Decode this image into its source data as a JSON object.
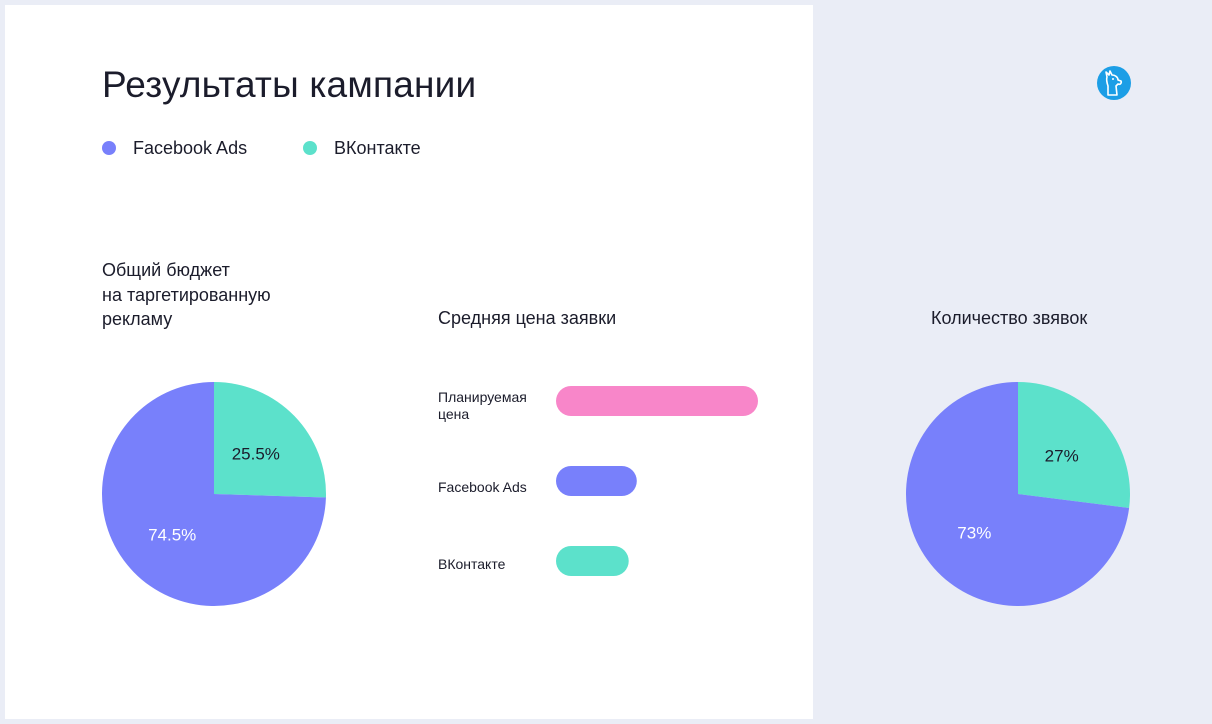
{
  "title": "Результаты кампании",
  "legend": [
    {
      "label": "Facebook Ads",
      "color": "#7880fb"
    },
    {
      "label": "ВКонтакте",
      "color": "#5ce1cb"
    }
  ],
  "logo": {
    "icon": "llama-icon",
    "color": "#1c9ee6"
  },
  "chart_data": [
    {
      "type": "pie",
      "title_lines": [
        "Общий бюджет",
        "на таргетированную",
        "рекламу"
      ],
      "slices": [
        {
          "name": "ВКонтакте",
          "value": 25.5,
          "label": "25.5%",
          "color": "#5ce1cb"
        },
        {
          "name": "Facebook Ads",
          "value": 74.5,
          "label": "74.5%",
          "color": "#7880fb"
        }
      ]
    },
    {
      "type": "bar",
      "orientation": "horizontal",
      "title": "Средняя цена заявки",
      "categories": [
        "Планируемая цена",
        "Facebook Ads",
        "ВКонтакте"
      ],
      "values": [
        100,
        40,
        36
      ],
      "colors": [
        "#f886c9",
        "#7880fb",
        "#5ce1cb"
      ]
    },
    {
      "type": "pie",
      "title": "Количество звявок",
      "slices": [
        {
          "name": "ВКонтакте",
          "value": 27,
          "label": "27%",
          "color": "#5ce1cb"
        },
        {
          "name": "Facebook Ads",
          "value": 73,
          "label": "73%",
          "color": "#7880fb"
        }
      ]
    }
  ]
}
